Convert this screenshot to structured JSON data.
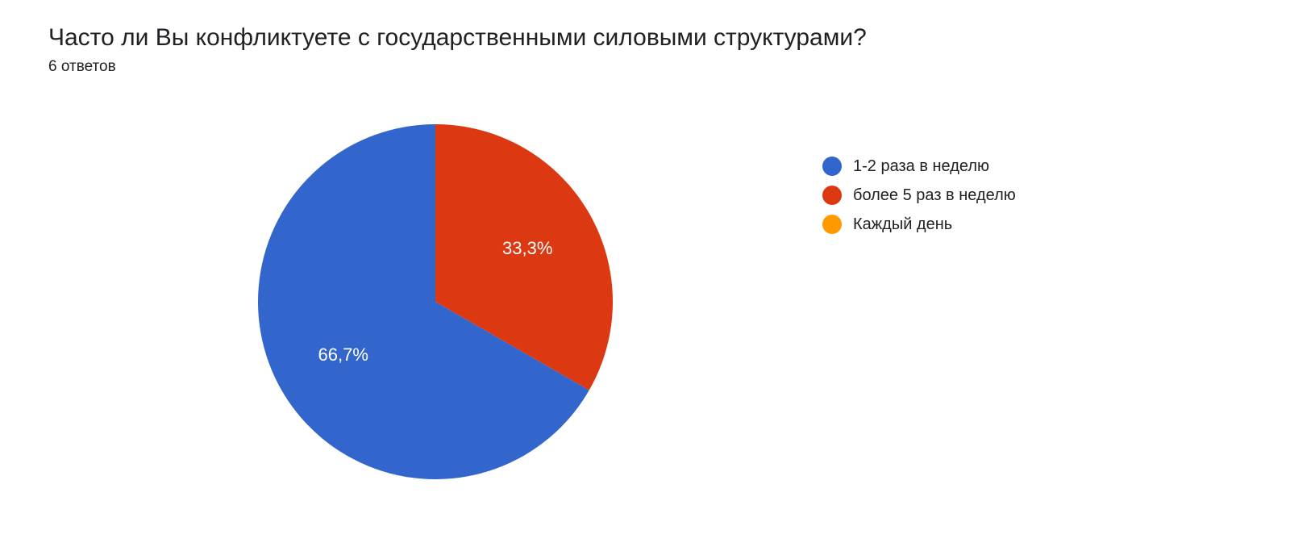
{
  "title": "Часто ли Вы конфликтуете с государственными силовыми структурами?",
  "subtitle": "6 ответов",
  "chart": {
    "type": "pie",
    "radius": 220,
    "background_color": "#ffffff",
    "label_color": "#ffffff",
    "label_fontsize": 22,
    "title_fontsize": 30,
    "subtitle_fontsize": 19,
    "slices": [
      {
        "label": "1-2 раза в неделю",
        "value": 66.7,
        "display": "66,7%",
        "color": "#3366cc"
      },
      {
        "label": "более 5 раз в неделю",
        "value": 33.3,
        "display": "33,3%",
        "color": "#dc3912"
      },
      {
        "label": "Каждый день",
        "value": 0,
        "display": "",
        "color": "#ff9900"
      }
    ]
  },
  "legend": {
    "items": [
      {
        "label": "1-2 раза в неделю",
        "color": "#3366cc"
      },
      {
        "label": "более 5 раз в неделю",
        "color": "#dc3912"
      },
      {
        "label": "Каждый день",
        "color": "#ff9900"
      }
    ]
  }
}
